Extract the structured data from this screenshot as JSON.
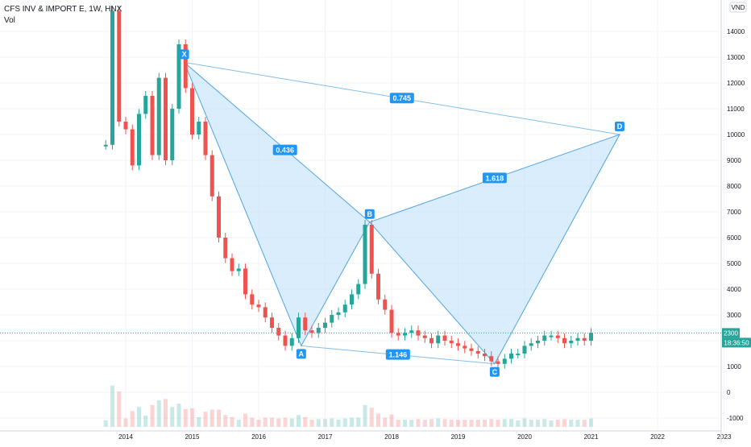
{
  "header": {
    "symbol_line": "CFS INV & IMPORT E, 1W, HNX",
    "volume_label": "Vol"
  },
  "currency": "VND",
  "last_price": "2300",
  "countdown": "18:36:50",
  "colors": {
    "up": "#26a69a",
    "down": "#ef5350",
    "pattern_fill": "#bbdefb",
    "pattern_line": "#4fa3e0",
    "label_bg": "#2196f3",
    "price_line": "#26a69a",
    "grid": "#f0f3fa"
  },
  "chart_data": {
    "type": "candlestick",
    "title": "CFS INV & IMPORT E, 1W, HNX",
    "xlabel": "",
    "ylabel": "",
    "x_ticks": [
      "2014",
      "2015",
      "2016",
      "2017",
      "2018",
      "2019",
      "2020",
      "2021",
      "2022",
      "2023"
    ],
    "x_tick_values": [
      2014,
      2015,
      2016,
      2017,
      2018,
      2019,
      2020,
      2021,
      2022,
      2023
    ],
    "y_ticks": [
      "1000",
      "2000",
      "3000",
      "4000",
      "5000",
      "6000",
      "7000",
      "8000",
      "9000",
      "10000",
      "11000",
      "12000",
      "13000",
      "14000"
    ],
    "y_tick_values": [
      1000,
      2000,
      3000,
      4000,
      5000,
      6000,
      7000,
      8000,
      9000,
      10000,
      11000,
      12000,
      13000,
      14000
    ],
    "volume_ticks": [
      "0",
      "-1000"
    ],
    "ylim": [
      -1000,
      15000
    ],
    "xlim": [
      2013.8,
      2023.0
    ],
    "grid": true,
    "series": [
      {
        "kind": "price",
        "x": [
          2013.7,
          2013.8,
          2013.9,
          2014.0,
          2014.1,
          2014.2,
          2014.3,
          2014.4,
          2014.5,
          2014.6,
          2014.7,
          2014.8,
          2014.9,
          2015.0,
          2015.1,
          2015.2,
          2015.3,
          2015.4,
          2015.5,
          2015.6,
          2015.7,
          2015.8,
          2015.9,
          2016.0,
          2016.1,
          2016.2,
          2016.3,
          2016.4,
          2016.5,
          2016.6,
          2016.7,
          2016.8,
          2016.9,
          2017.0,
          2017.1,
          2017.2,
          2017.3,
          2017.4,
          2017.5,
          2017.6,
          2017.7,
          2017.8,
          2017.9,
          2018.0,
          2018.1,
          2018.2,
          2018.3,
          2018.4,
          2018.5,
          2018.6,
          2018.7,
          2018.8,
          2018.9,
          2019.0,
          2019.1,
          2019.2,
          2019.3,
          2019.4,
          2019.5,
          2019.6,
          2019.7,
          2019.8,
          2019.9,
          2020.0,
          2020.1,
          2020.2,
          2020.3,
          2020.4,
          2020.5,
          2020.6,
          2020.7,
          2020.8,
          2020.9,
          2021.0
        ],
        "values": [
          9600,
          14800,
          10500,
          10200,
          8800,
          10800,
          11500,
          9200,
          12200,
          9000,
          11000,
          13500,
          11800,
          10000,
          10500,
          9200,
          7600,
          6000,
          5200,
          4700,
          4800,
          3800,
          3400,
          3300,
          2900,
          2500,
          2200,
          1800,
          2100,
          2900,
          2400,
          2300,
          2500,
          2700,
          3000,
          3100,
          3400,
          3800,
          4200,
          6500,
          4600,
          3600,
          3200,
          2300,
          2200,
          2300,
          2400,
          2200,
          2100,
          1900,
          2200,
          2000,
          1900,
          1800,
          1700,
          1600,
          1500,
          1400,
          1200,
          1100,
          1300,
          1500,
          1500,
          1800,
          1900,
          2000,
          2200,
          2200,
          2100,
          1900,
          2000,
          2100,
          2000,
          2300
        ]
      }
    ],
    "harmonic_pattern": {
      "type": "harmonic",
      "points": [
        {
          "name": "X",
          "x": 2014.88,
          "y": 12800
        },
        {
          "name": "A",
          "x": 2016.64,
          "y": 1800
        },
        {
          "name": "B",
          "x": 2017.67,
          "y": 6600
        },
        {
          "name": "C",
          "x": 2019.55,
          "y": 1100
        },
        {
          "name": "D",
          "x": 2021.43,
          "y": 10000
        }
      ],
      "ratios": [
        {
          "label": "0.436",
          "between": [
            "X",
            "B"
          ]
        },
        {
          "label": "0.745",
          "between": [
            "X",
            "D"
          ]
        },
        {
          "label": "1.618",
          "between": [
            "B",
            "D"
          ]
        },
        {
          "label": "1.146",
          "between": [
            "A",
            "C"
          ]
        }
      ]
    }
  }
}
